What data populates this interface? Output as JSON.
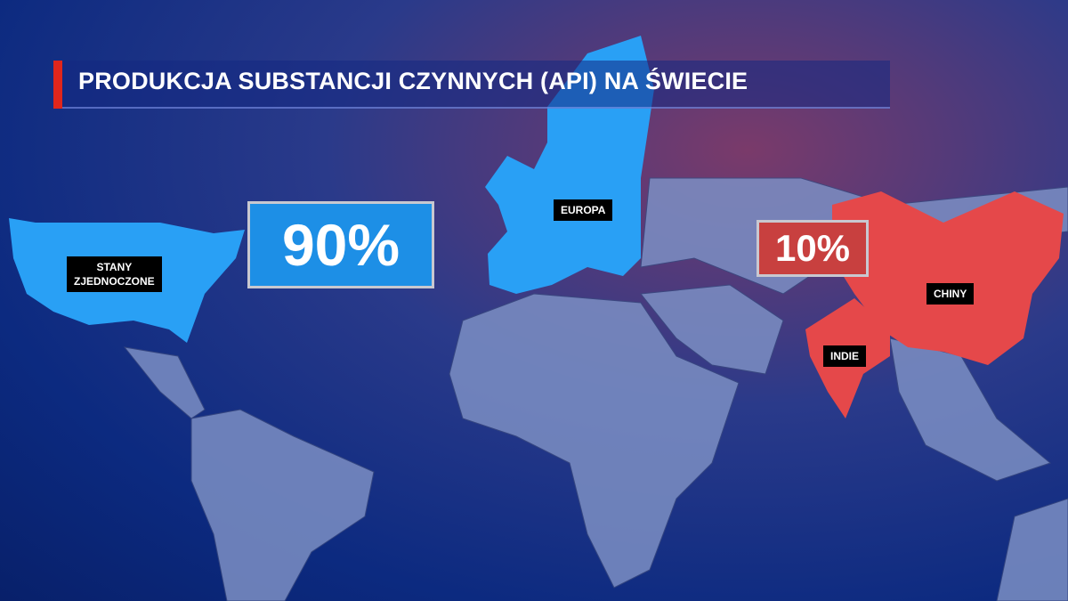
{
  "title": "PRODUKCJA SUBSTANCJI CZYNNYCH (API) NA ŚWIECIE",
  "colors": {
    "blue_regions": "#29a0f5",
    "red_regions": "#e5484a",
    "accent": "#e0261c",
    "land": "#7c8fc4"
  },
  "share_blue": {
    "value": "90%",
    "regions": [
      "STANY ZJEDNOCZONE",
      "EUROPA"
    ]
  },
  "share_red": {
    "value": "10%",
    "regions": [
      "CHINY",
      "INDIE"
    ]
  },
  "labels": {
    "usa_line1": "STANY",
    "usa_line2": "ZJEDNOCZONE",
    "europe": "EUROPA",
    "china": "CHINY",
    "india": "INDIE"
  }
}
